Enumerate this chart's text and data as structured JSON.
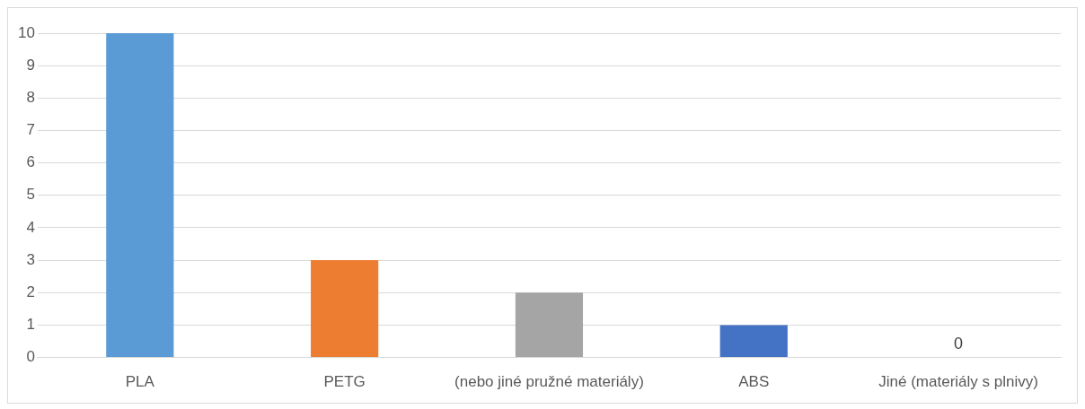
{
  "chart_data": {
    "type": "bar",
    "categories": [
      "PLA",
      "PETG",
      "(nebo jiné pružné materiály)",
      "ABS",
      "Jiné (materiály s plnivy)"
    ],
    "values": [
      10,
      3,
      2,
      1,
      0
    ],
    "colors": [
      "#5b9bd5",
      "#ed7d31",
      "#a5a5a5",
      "#4472c4",
      "#ffc000"
    ],
    "value_labels": [
      null,
      null,
      null,
      null,
      "0"
    ],
    "ylim": [
      0,
      10
    ],
    "yticks": [
      0,
      1,
      2,
      3,
      4,
      5,
      6,
      7,
      8,
      9,
      10
    ],
    "grid": "y",
    "legend": false
  }
}
